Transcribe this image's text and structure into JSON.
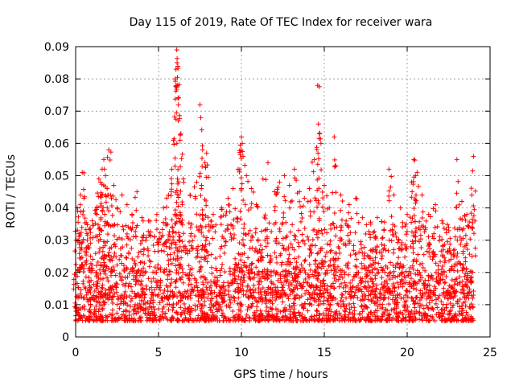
{
  "chart_data": {
    "type": "scatter",
    "title": "Day 115 of 2019, Rate Of TEC Index for receiver wara",
    "xlabel": "GPS time / hours",
    "ylabel": "ROTI / TECUs",
    "xlim": [
      0,
      25
    ],
    "ylim": [
      0,
      0.09
    ],
    "xticks": [
      0,
      5,
      10,
      15,
      20,
      25
    ],
    "xtick_labels": [
      "0",
      "5",
      "10",
      "15",
      "20",
      "25"
    ],
    "yticks": [
      0,
      0.01,
      0.02,
      0.03,
      0.04,
      0.05,
      0.06,
      0.07,
      0.08,
      0.09
    ],
    "ytick_labels": [
      "0",
      "0.01",
      "0.02",
      "0.03",
      "0.04",
      "0.05",
      "0.06",
      "0.07",
      "0.08",
      "0.09"
    ],
    "grid": true,
    "marker": "+",
    "color": "#ff0000",
    "series": [
      {
        "name": "ROTI",
        "points": [
          [
            0.0,
            0.009
          ],
          [
            0.1,
            0.04
          ],
          [
            0.2,
            0.032
          ],
          [
            0.3,
            0.044
          ],
          [
            0.4,
            0.051
          ],
          [
            0.5,
            0.043
          ],
          [
            0.7,
            0.03
          ],
          [
            1.0,
            0.036
          ],
          [
            1.3,
            0.04
          ],
          [
            1.4,
            0.049
          ],
          [
            1.5,
            0.048
          ],
          [
            1.6,
            0.052
          ],
          [
            1.7,
            0.055
          ],
          [
            1.8,
            0.05
          ],
          [
            1.9,
            0.046
          ],
          [
            2.0,
            0.058
          ],
          [
            2.1,
            0.044
          ],
          [
            2.3,
            0.047
          ],
          [
            2.5,
            0.04
          ],
          [
            2.8,
            0.044
          ],
          [
            3.1,
            0.041
          ],
          [
            3.4,
            0.038
          ],
          [
            3.7,
            0.045
          ],
          [
            4.0,
            0.037
          ],
          [
            4.4,
            0.036
          ],
          [
            4.9,
            0.038
          ],
          [
            5.3,
            0.04
          ],
          [
            5.6,
            0.044
          ],
          [
            5.8,
            0.052
          ],
          [
            5.9,
            0.061
          ],
          [
            6.0,
            0.08
          ],
          [
            6.05,
            0.083
          ],
          [
            6.1,
            0.089
          ],
          [
            6.12,
            0.085
          ],
          [
            6.15,
            0.078
          ],
          [
            6.18,
            0.074
          ],
          [
            6.2,
            0.072
          ],
          [
            6.3,
            0.061
          ],
          [
            6.35,
            0.063
          ],
          [
            6.5,
            0.049
          ],
          [
            6.9,
            0.044
          ],
          [
            7.3,
            0.048
          ],
          [
            7.5,
            0.072
          ],
          [
            7.55,
            0.068
          ],
          [
            7.6,
            0.047
          ],
          [
            7.8,
            0.054
          ],
          [
            7.9,
            0.057
          ],
          [
            8.3,
            0.038
          ],
          [
            8.8,
            0.04
          ],
          [
            9.2,
            0.043
          ],
          [
            9.5,
            0.046
          ],
          [
            9.8,
            0.052
          ],
          [
            10.0,
            0.062
          ],
          [
            10.05,
            0.06
          ],
          [
            10.1,
            0.056
          ],
          [
            10.3,
            0.05
          ],
          [
            10.6,
            0.046
          ],
          [
            10.9,
            0.041
          ],
          [
            11.3,
            0.049
          ],
          [
            11.6,
            0.054
          ],
          [
            12.0,
            0.045
          ],
          [
            12.3,
            0.048
          ],
          [
            12.6,
            0.05
          ],
          [
            12.9,
            0.047
          ],
          [
            13.2,
            0.052
          ],
          [
            13.5,
            0.045
          ],
          [
            13.8,
            0.043
          ],
          [
            14.1,
            0.046
          ],
          [
            14.4,
            0.055
          ],
          [
            14.6,
            0.078
          ],
          [
            14.65,
            0.066
          ],
          [
            14.7,
            0.063
          ],
          [
            14.8,
            0.06
          ],
          [
            15.0,
            0.047
          ],
          [
            15.3,
            0.04
          ],
          [
            15.6,
            0.062
          ],
          [
            15.7,
            0.053
          ],
          [
            16.0,
            0.044
          ],
          [
            16.5,
            0.041
          ],
          [
            16.9,
            0.043
          ],
          [
            17.3,
            0.037
          ],
          [
            17.8,
            0.035
          ],
          [
            18.2,
            0.037
          ],
          [
            18.6,
            0.033
          ],
          [
            18.9,
            0.052
          ],
          [
            19.2,
            0.044
          ],
          [
            19.6,
            0.04
          ],
          [
            20.0,
            0.038
          ],
          [
            20.3,
            0.045
          ],
          [
            20.4,
            0.055
          ],
          [
            20.5,
            0.05
          ],
          [
            20.6,
            0.051
          ],
          [
            20.9,
            0.044
          ],
          [
            21.3,
            0.038
          ],
          [
            21.7,
            0.041
          ],
          [
            22.1,
            0.036
          ],
          [
            22.5,
            0.034
          ],
          [
            22.9,
            0.031
          ],
          [
            23.0,
            0.055
          ],
          [
            23.3,
            0.042
          ],
          [
            23.6,
            0.038
          ],
          [
            23.9,
            0.044
          ],
          [
            24.0,
            0.056
          ]
        ]
      }
    ],
    "baseline_band": {
      "min": 0.005,
      "max": 0.02
    }
  }
}
